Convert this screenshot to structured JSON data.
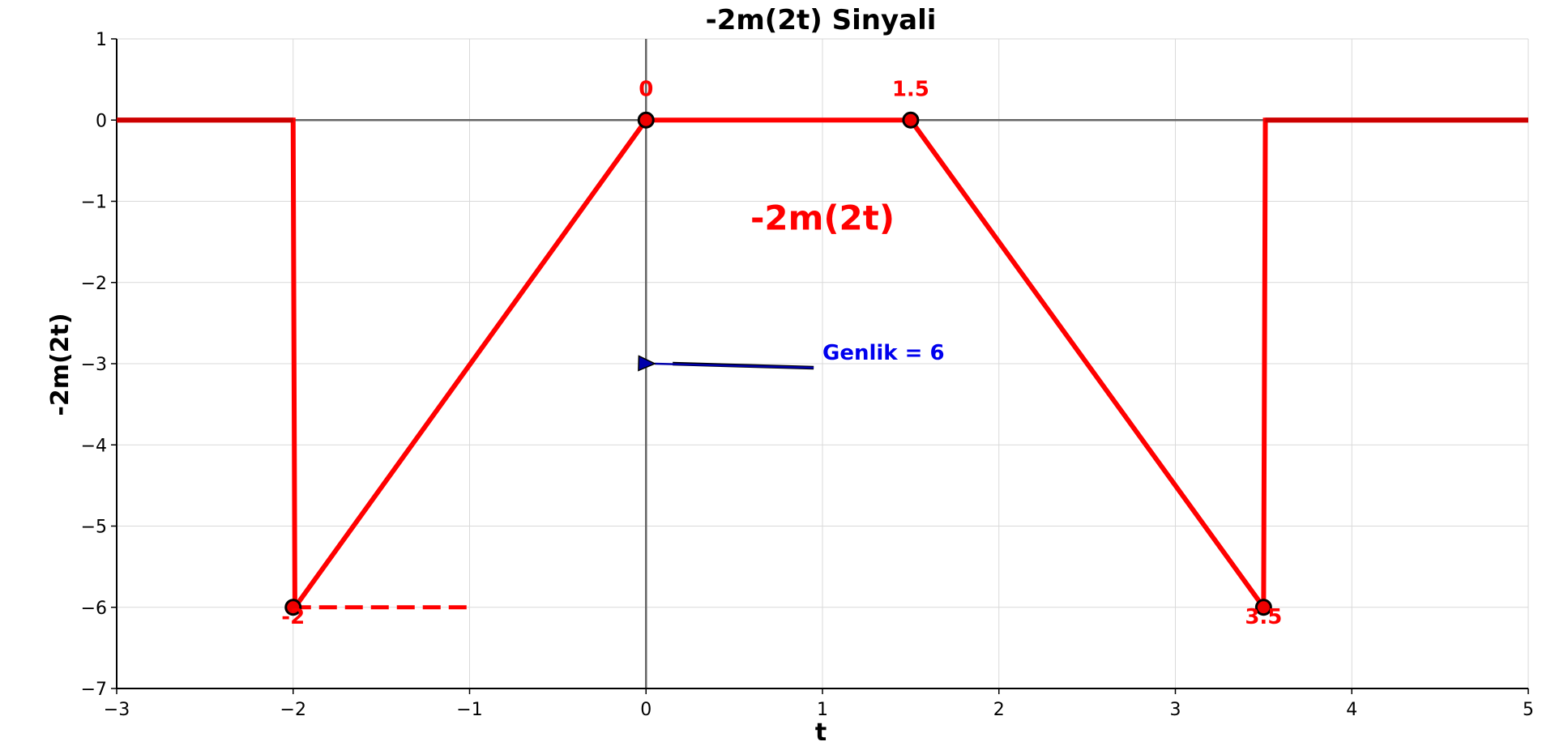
{
  "chart_data": {
    "type": "line",
    "title": "-2m(2t) Sinyali",
    "xlabel": "t",
    "ylabel": "-2m(2t)",
    "xlim": [
      -3,
      5
    ],
    "ylim": [
      -7,
      1
    ],
    "xticks": [
      "−3",
      "−2",
      "−1",
      "0",
      "1",
      "2",
      "3",
      "4",
      "5"
    ],
    "yticks": [
      "1",
      "0",
      "−1",
      "−2",
      "−3",
      "−4",
      "−5",
      "−6",
      "−7"
    ],
    "grid": true,
    "series": [
      {
        "color": "#ff0000",
        "x": [
          -3,
          -2,
          -1.99,
          0,
          1.5,
          3.5,
          3.51,
          5
        ],
        "y": [
          0,
          0,
          -6,
          0,
          0,
          -6,
          0,
          0
        ]
      }
    ],
    "markers": [
      {
        "x": -2,
        "y": -6,
        "label": "-2"
      },
      {
        "x": 0,
        "y": 0,
        "label": "0"
      },
      {
        "x": 1.5,
        "y": 0,
        "label": "1.5"
      },
      {
        "x": 3.5,
        "y": -6,
        "label": "3.5"
      }
    ],
    "dashed_line": {
      "x": [
        -2,
        -1
      ],
      "y": -6,
      "color": "#ff0000"
    },
    "annotations": {
      "signal_label": {
        "text": "-2m(2t)",
        "x": 1,
        "y": -1.35,
        "color": "#ff0000"
      },
      "amplitude": {
        "text": "Genlik = 6",
        "x": 1,
        "y": -2.95,
        "arrow_from": [
          0.95,
          -3.05
        ],
        "arrow_to": [
          0.05,
          -3.0
        ],
        "color": "#0000ee"
      }
    }
  }
}
